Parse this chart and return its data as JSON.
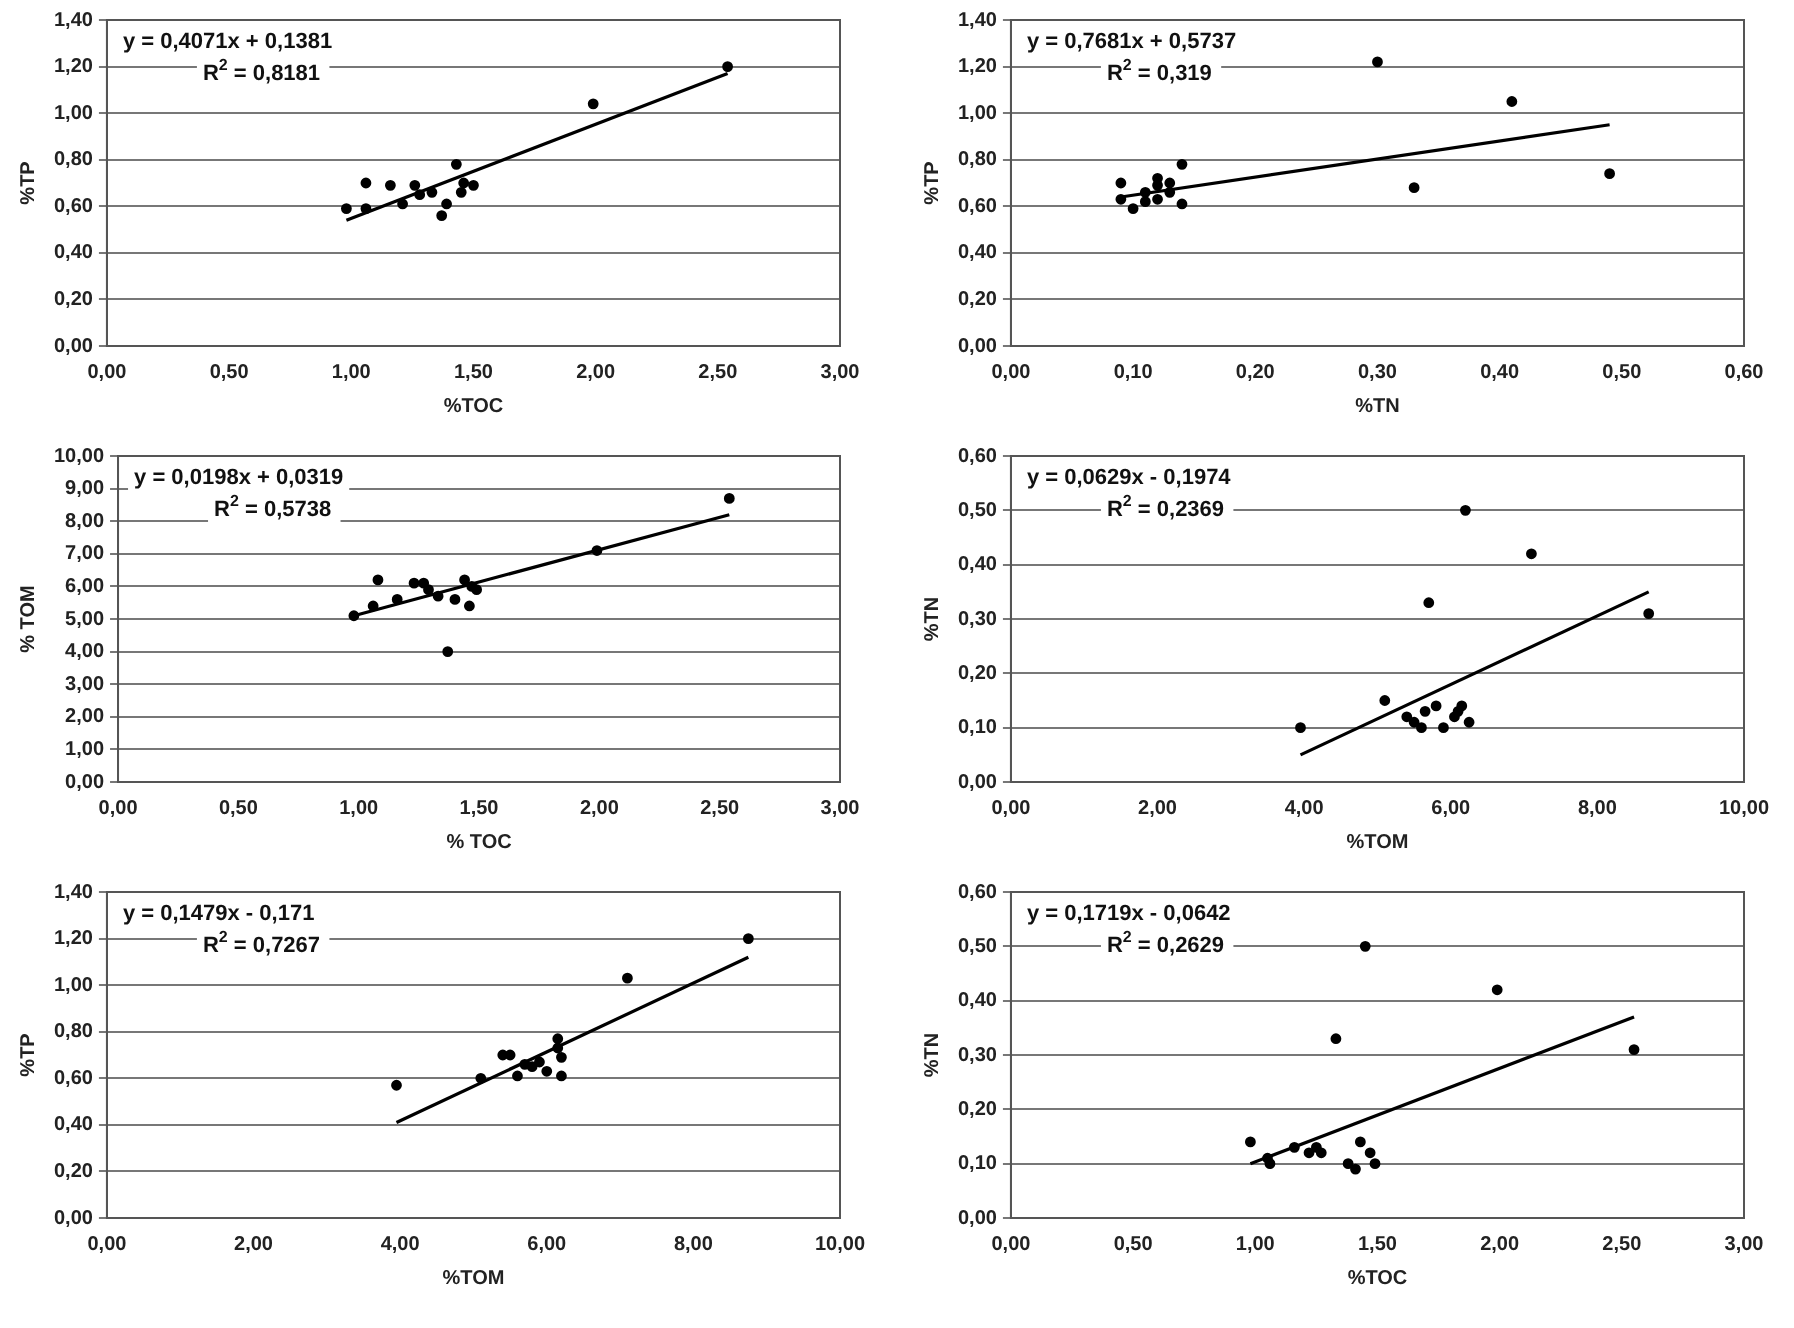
{
  "chart_data": [
    {
      "type": "scatter",
      "xlabel": "%TOC",
      "ylabel": "%TP",
      "grid": "y",
      "marker": "circle",
      "annotations": [
        "y = 0,4071x + 0,1381",
        "R$^{2}$ = 0,8181"
      ],
      "xlim": [
        0,
        3
      ],
      "xticks": [
        {
          "value": 0,
          "label": "0,00"
        },
        {
          "value": 0.5,
          "label": "0,50"
        },
        {
          "value": 1,
          "label": "1,00"
        },
        {
          "value": 1.5,
          "label": "1,50"
        },
        {
          "value": 2,
          "label": "2,00"
        },
        {
          "value": 2.5,
          "label": "2,50"
        },
        {
          "value": 3,
          "label": "3,00"
        }
      ],
      "ylim": [
        0,
        1.4
      ],
      "yticks": [
        {
          "value": 0,
          "label": "0,00"
        },
        {
          "value": 0.2,
          "label": "0,20"
        },
        {
          "value": 0.4,
          "label": "0,40"
        },
        {
          "value": 0.6,
          "label": "0,60"
        },
        {
          "value": 0.8,
          "label": "0,80"
        },
        {
          "value": 1,
          "label": "1,00"
        },
        {
          "value": 1.2,
          "label": "1,20"
        },
        {
          "value": 1.4,
          "label": "1,40"
        }
      ],
      "series": [
        {
          "type": "scatter",
          "color": "#000000",
          "x": [
            0.98,
            1.06,
            1.06,
            1.16,
            1.21,
            1.26,
            1.28,
            1.33,
            1.37,
            1.39,
            1.43,
            1.45,
            1.46,
            1.5,
            1.99,
            2.54
          ],
          "values": [
            0.59,
            0.7,
            0.59,
            0.69,
            0.61,
            0.69,
            0.65,
            0.66,
            0.56,
            0.61,
            0.78,
            0.66,
            0.7,
            0.69,
            1.04,
            1.2
          ]
        },
        {
          "type": "line",
          "marker": "none",
          "color": "#000000",
          "x": [
            0.98,
            2.54
          ],
          "values": [
            0.54,
            1.17
          ]
        }
      ]
    },
    {
      "type": "scatter",
      "xlabel": "%TN",
      "ylabel": "%TP",
      "grid": "y",
      "marker": "circle",
      "annotations": [
        "y = 0,7681x + 0,5737",
        "R$^{2}$ = 0,319"
      ],
      "xlim": [
        0,
        0.6
      ],
      "xticks": [
        {
          "value": 0,
          "label": "0,00"
        },
        {
          "value": 0.1,
          "label": "0,10"
        },
        {
          "value": 0.2,
          "label": "0,20"
        },
        {
          "value": 0.3,
          "label": "0,30"
        },
        {
          "value": 0.4,
          "label": "0,40"
        },
        {
          "value": 0.5,
          "label": "0,50"
        },
        {
          "value": 0.6,
          "label": "0,60"
        }
      ],
      "ylim": [
        0,
        1.4
      ],
      "yticks": [
        {
          "value": 0,
          "label": "0,00"
        },
        {
          "value": 0.2,
          "label": "0,20"
        },
        {
          "value": 0.4,
          "label": "0,40"
        },
        {
          "value": 0.6,
          "label": "0,60"
        },
        {
          "value": 0.8,
          "label": "0,80"
        },
        {
          "value": 1,
          "label": "1,00"
        },
        {
          "value": 1.2,
          "label": "1,20"
        },
        {
          "value": 1.4,
          "label": "1,40"
        }
      ],
      "series": [
        {
          "type": "scatter",
          "color": "#000000",
          "x": [
            0.09,
            0.09,
            0.1,
            0.11,
            0.11,
            0.12,
            0.12,
            0.12,
            0.13,
            0.13,
            0.14,
            0.14,
            0.3,
            0.33,
            0.41,
            0.49
          ],
          "values": [
            0.7,
            0.63,
            0.59,
            0.62,
            0.66,
            0.72,
            0.63,
            0.69,
            0.7,
            0.66,
            0.78,
            0.61,
            1.22,
            0.68,
            1.05,
            0.74
          ]
        },
        {
          "type": "line",
          "marker": "none",
          "color": "#000000",
          "x": [
            0.09,
            0.49
          ],
          "values": [
            0.64,
            0.95
          ]
        }
      ]
    },
    {
      "type": "scatter",
      "xlabel": "% TOC",
      "ylabel": "% TOM",
      "grid": "y",
      "marker": "circle",
      "annotations": [
        "y = 0,0198x + 0,0319",
        "R$^{2}$ = 0,5738"
      ],
      "xlim": [
        0,
        3
      ],
      "xticks": [
        {
          "value": 0,
          "label": "0,00"
        },
        {
          "value": 0.5,
          "label": "0,50"
        },
        {
          "value": 1,
          "label": "1,00"
        },
        {
          "value": 1.5,
          "label": "1,50"
        },
        {
          "value": 2,
          "label": "2,00"
        },
        {
          "value": 2.5,
          "label": "2,50"
        },
        {
          "value": 3,
          "label": "3,00"
        }
      ],
      "ylim": [
        0,
        10
      ],
      "yticks": [
        {
          "value": 0,
          "label": "0,00"
        },
        {
          "value": 1,
          "label": "1,00"
        },
        {
          "value": 2,
          "label": "2,00"
        },
        {
          "value": 3,
          "label": "3,00"
        },
        {
          "value": 4,
          "label": "4,00"
        },
        {
          "value": 5,
          "label": "5,00"
        },
        {
          "value": 6,
          "label": "6,00"
        },
        {
          "value": 7,
          "label": "7,00"
        },
        {
          "value": 8,
          "label": "8,00"
        },
        {
          "value": 9,
          "label": "9,00"
        },
        {
          "value": 10,
          "label": "10,00"
        }
      ],
      "series": [
        {
          "type": "scatter",
          "color": "#000000",
          "x": [
            0.98,
            1.06,
            1.08,
            1.16,
            1.23,
            1.27,
            1.29,
            1.33,
            1.37,
            1.4,
            1.44,
            1.46,
            1.47,
            1.49,
            1.99,
            2.54
          ],
          "values": [
            5.1,
            5.4,
            6.2,
            5.6,
            6.1,
            6.1,
            5.9,
            5.7,
            4.0,
            5.6,
            6.2,
            5.4,
            6.0,
            5.9,
            7.1,
            8.7
          ]
        },
        {
          "type": "line",
          "marker": "none",
          "color": "#000000",
          "x": [
            0.98,
            2.54
          ],
          "values": [
            5.1,
            8.2
          ]
        }
      ]
    },
    {
      "type": "scatter",
      "xlabel": "%TOM",
      "ylabel": "%TN",
      "grid": "y",
      "marker": "circle",
      "annotations": [
        "y = 0,0629x - 0,1974",
        "R$^{2}$ = 0,2369"
      ],
      "xlim": [
        0,
        10
      ],
      "xticks": [
        {
          "value": 0,
          "label": "0,00"
        },
        {
          "value": 2,
          "label": "2,00"
        },
        {
          "value": 4,
          "label": "4,00"
        },
        {
          "value": 6,
          "label": "6,00"
        },
        {
          "value": 8,
          "label": "8,00"
        },
        {
          "value": 10,
          "label": "10,00"
        }
      ],
      "ylim": [
        0,
        0.6
      ],
      "yticks": [
        {
          "value": 0,
          "label": "0,00"
        },
        {
          "value": 0.1,
          "label": "0,10"
        },
        {
          "value": 0.2,
          "label": "0,20"
        },
        {
          "value": 0.3,
          "label": "0,30"
        },
        {
          "value": 0.4,
          "label": "0,40"
        },
        {
          "value": 0.5,
          "label": "0,50"
        },
        {
          "value": 0.6,
          "label": "0,60"
        }
      ],
      "series": [
        {
          "type": "scatter",
          "color": "#000000",
          "x": [
            3.95,
            5.1,
            5.4,
            5.5,
            5.6,
            5.65,
            5.7,
            5.8,
            5.9,
            6.05,
            6.1,
            6.15,
            6.2,
            6.25,
            7.1,
            8.7
          ],
          "values": [
            0.1,
            0.15,
            0.12,
            0.11,
            0.1,
            0.13,
            0.33,
            0.14,
            0.1,
            0.12,
            0.13,
            0.14,
            0.5,
            0.11,
            0.42,
            0.31
          ]
        },
        {
          "type": "line",
          "marker": "none",
          "color": "#000000",
          "x": [
            3.95,
            8.7
          ],
          "values": [
            0.05,
            0.35
          ]
        }
      ]
    },
    {
      "type": "scatter",
      "xlabel": "%TOM",
      "ylabel": "%TP",
      "grid": "y",
      "marker": "circle",
      "annotations": [
        "y = 0,1479x - 0,171",
        "R$^{2}$ = 0,7267"
      ],
      "xlim": [
        0,
        10
      ],
      "xticks": [
        {
          "value": 0,
          "label": "0,00"
        },
        {
          "value": 2,
          "label": "2,00"
        },
        {
          "value": 4,
          "label": "4,00"
        },
        {
          "value": 6,
          "label": "6,00"
        },
        {
          "value": 8,
          "label": "8,00"
        },
        {
          "value": 10,
          "label": "10,00"
        }
      ],
      "ylim": [
        0,
        1.4
      ],
      "yticks": [
        {
          "value": 0,
          "label": "0,00"
        },
        {
          "value": 0.2,
          "label": "0,20"
        },
        {
          "value": 0.4,
          "label": "0,40"
        },
        {
          "value": 0.6,
          "label": "0,60"
        },
        {
          "value": 0.8,
          "label": "0,80"
        },
        {
          "value": 1,
          "label": "1,00"
        },
        {
          "value": 1.2,
          "label": "1,20"
        },
        {
          "value": 1.4,
          "label": "1,40"
        }
      ],
      "series": [
        {
          "type": "scatter",
          "color": "#000000",
          "x": [
            3.95,
            5.1,
            5.4,
            5.5,
            5.6,
            5.7,
            5.8,
            5.9,
            6.0,
            6.15,
            6.15,
            6.2,
            6.2,
            7.1,
            8.75
          ],
          "values": [
            0.57,
            0.6,
            0.7,
            0.7,
            0.61,
            0.66,
            0.65,
            0.67,
            0.63,
            0.77,
            0.73,
            0.69,
            0.61,
            1.03,
            1.2
          ]
        },
        {
          "type": "line",
          "marker": "none",
          "color": "#000000",
          "x": [
            3.95,
            8.75
          ],
          "values": [
            0.41,
            1.12
          ]
        }
      ]
    },
    {
      "type": "scatter",
      "xlabel": "%TOC",
      "ylabel": "%TN",
      "grid": "y",
      "marker": "circle",
      "annotations": [
        "y = 0,1719x - 0,0642",
        "R$^{2}$ = 0,2629"
      ],
      "xlim": [
        0,
        3
      ],
      "xticks": [
        {
          "value": 0,
          "label": "0,00"
        },
        {
          "value": 0.5,
          "label": "0,50"
        },
        {
          "value": 1,
          "label": "1,00"
        },
        {
          "value": 1.5,
          "label": "1,50"
        },
        {
          "value": 2,
          "label": "2,00"
        },
        {
          "value": 2.5,
          "label": "2,50"
        },
        {
          "value": 3,
          "label": "3,00"
        }
      ],
      "ylim": [
        0,
        0.6
      ],
      "yticks": [
        {
          "value": 0,
          "label": "0,00"
        },
        {
          "value": 0.1,
          "label": "0,10"
        },
        {
          "value": 0.2,
          "label": "0,20"
        },
        {
          "value": 0.3,
          "label": "0,30"
        },
        {
          "value": 0.4,
          "label": "0,40"
        },
        {
          "value": 0.5,
          "label": "0,50"
        },
        {
          "value": 0.6,
          "label": "0,60"
        }
      ],
      "series": [
        {
          "type": "scatter",
          "color": "#000000",
          "x": [
            0.98,
            1.05,
            1.06,
            1.16,
            1.22,
            1.25,
            1.27,
            1.33,
            1.38,
            1.41,
            1.43,
            1.45,
            1.47,
            1.49,
            1.99,
            2.55
          ],
          "values": [
            0.14,
            0.11,
            0.1,
            0.13,
            0.12,
            0.13,
            0.12,
            0.33,
            0.1,
            0.09,
            0.14,
            0.5,
            0.12,
            0.1,
            0.42,
            0.31
          ]
        },
        {
          "type": "line",
          "marker": "none",
          "color": "#000000",
          "x": [
            0.98,
            2.55
          ],
          "values": [
            0.1,
            0.37
          ]
        }
      ]
    }
  ]
}
